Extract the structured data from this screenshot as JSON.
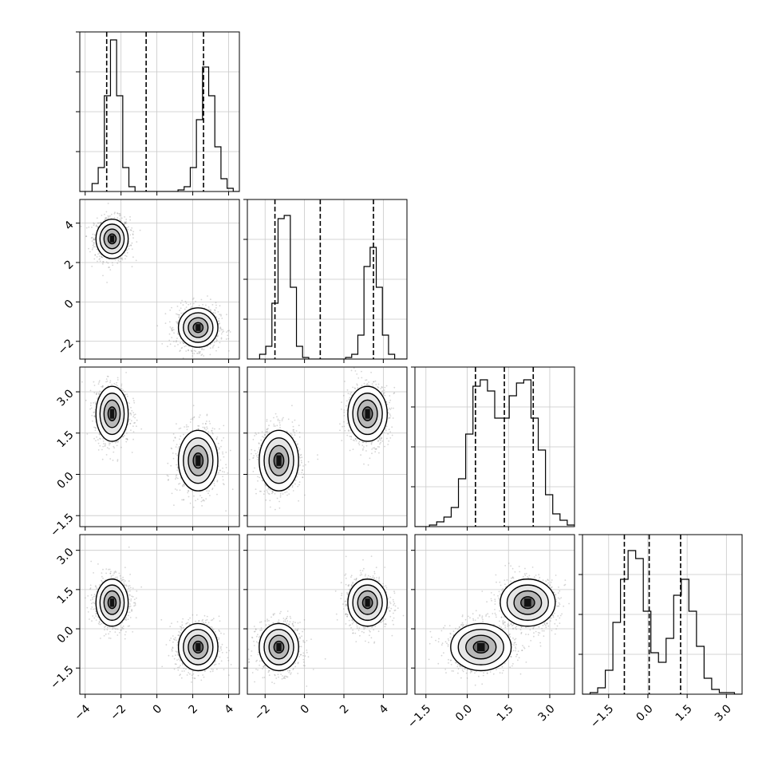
{
  "chart_data": {
    "type": "corner",
    "grid": true,
    "axis_ticks": [
      [
        "−4",
        "−2",
        "0",
        "2",
        "4"
      ],
      [
        "−2",
        "0",
        "2",
        "4"
      ],
      [
        "−1.5",
        "0.0",
        "1.5",
        "3.0"
      ],
      [
        "−1.5",
        "0.0",
        "1.5",
        "3.0"
      ]
    ],
    "ranges": [
      [
        -4.3,
        4.6
      ],
      [
        -2.9,
        5.2
      ],
      [
        -1.9,
        3.9
      ],
      [
        -2.5,
        3.6
      ]
    ],
    "tick_values": [
      [
        -4,
        -2,
        0,
        2,
        4
      ],
      [
        -2,
        0,
        2,
        4
      ],
      [
        -1.5,
        0.0,
        1.5,
        3.0
      ],
      [
        -1.5,
        0.0,
        1.5,
        3.0
      ]
    ],
    "quantiles": [
      [
        -2.8,
        -0.6,
        2.6
      ],
      [
        -1.5,
        0.8,
        3.5
      ],
      [
        0.3,
        1.35,
        2.4
      ],
      [
        -0.9,
        0.05,
        1.25
      ]
    ],
    "histograms": [
      [
        0,
        0,
        0.05,
        0.15,
        0.6,
        0.95,
        0.6,
        0.15,
        0.03,
        0,
        0,
        0,
        0,
        0,
        0,
        0,
        0.01,
        0.03,
        0.15,
        0.45,
        0.78,
        0.6,
        0.28,
        0.08,
        0.02,
        0
      ],
      [
        0,
        0,
        0.03,
        0.08,
        0.35,
        0.88,
        0.9,
        0.45,
        0.08,
        0.01,
        0,
        0,
        0,
        0,
        0,
        0,
        0.01,
        0.03,
        0.15,
        0.58,
        0.7,
        0.45,
        0.15,
        0.03,
        0,
        0
      ],
      [
        0,
        0,
        0.01,
        0.03,
        0.06,
        0.12,
        0.3,
        0.58,
        0.88,
        0.92,
        0.85,
        0.68,
        0.68,
        0.82,
        0.9,
        0.92,
        0.68,
        0.48,
        0.2,
        0.08,
        0.04,
        0.01
      ],
      [
        0,
        0.01,
        0.04,
        0.15,
        0.45,
        0.72,
        0.9,
        0.85,
        0.52,
        0.26,
        0.2,
        0.35,
        0.62,
        0.72,
        0.52,
        0.3,
        0.1,
        0.03,
        0.01,
        0.01,
        0
      ]
    ],
    "clusters": [
      {
        "means": [
          -2.5,
          3.2,
          2.2,
          1.0
        ],
        "sd": [
          0.45,
          0.5,
          0.5,
          0.45
        ]
      },
      {
        "means": [
          2.3,
          -1.3,
          0.5,
          -0.7
        ],
        "sd": [
          0.55,
          0.5,
          0.55,
          0.45
        ]
      }
    ]
  }
}
